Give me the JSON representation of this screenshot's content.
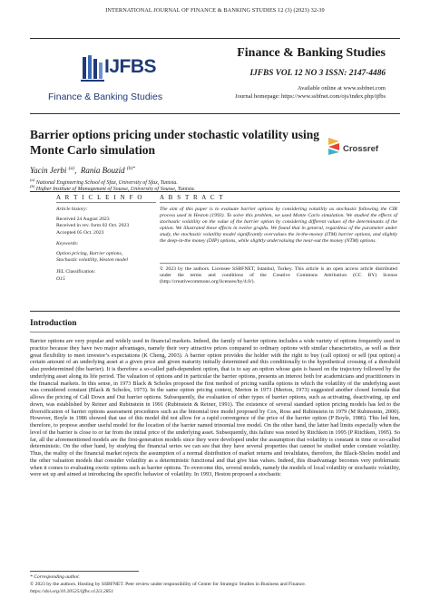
{
  "running_head": "INTERNATIONAL JOURNAL OF FINANCE & BANKING STUDIES 12 (3) (2023) 32-39",
  "logo": {
    "abbr": "IJFBS",
    "name": "Finance & Banking Studies",
    "accent": "#1f3a78"
  },
  "journal": {
    "name": "Finance & Banking Studies",
    "volume": "IJFBS VOL 12 NO 3 ISSN: 2147-4486",
    "online": "Available online at www.ssbfnet.com",
    "homepage": "Journal homepage: https://www.ssbfnet.com/ojs/index.php/ijfbs"
  },
  "title": "Barrier options pricing under stochastic volatility using Monte Carlo simulation",
  "crossref": "Crossref",
  "authors": [
    {
      "name": "Yacin Jerbi",
      "mark": "(a)"
    },
    {
      "name": "Rania Bouzid",
      "mark": "(b)*"
    }
  ],
  "author_sep": ",",
  "affiliations": [
    {
      "mark": "(a)",
      "text": "National Engineering School of Sfax, University of Sfax, Tunisia."
    },
    {
      "mark": "(b)",
      "text": "Higher Institute of Management of Sousse, University of Sousse, Tunisia."
    }
  ],
  "article_info": {
    "heading": "A R T I C L E   I N F O",
    "history_label": "Article history:",
    "history": [
      "Received 24 August 2023",
      "Received in rev. form 02 Oct. 2023",
      "Accepted 05 Oct. 2023"
    ],
    "keywords_label": "Keywords:",
    "keywords": [
      "Option pricing, Barrier options,",
      "Stochastic volatility, Heston model"
    ],
    "jel_label": "JEL Classification:",
    "jel": "O15"
  },
  "abstract": {
    "heading": "A B S T R A C T",
    "text": "The aim of this paper is to evaluate barrier options by considering volatility as stochastic following the CIR process used in Heston (1993). To solve this problem, we used Monte Carlo simulation. We studied the effects of stochastic volatility on the value of the barrier option by considering different values of the determinants of the option. We illustrated these effects in twelve graphs. We found that in general, regardless of the parameter under study, the stochastic volatility model significantly overvalues the in-the-money (ITM) barrier options, and slightly the deep-in-the money (DIP) options, while slightly undervaluing the near-out the money (NTM) options.",
    "copyright": "© 2023 by the authors. Licensee SSBFNET, Istanbul, Turkey. This article is an open access article distributed under the terms and conditions of the Creative Commons Attribution (CC BY) license (http://creativecommons.org/licenses/by/4.0/)."
  },
  "introduction": {
    "heading": "Introduction",
    "text": "Barrier options are very popular and widely used in financial markets. Indeed, the family of barrier options includes a wide variety of options frequently used in practice because they have two major advantages, namely their very attractive prices compared to ordinary options with similar characteristics, as well as their great flexibility to meet investor’s expectations (K Cheng, 2003). A barrier option provides the holder with the right to buy (call option) or sell (put option) a certain amount of an underlying asset at a given price and given maturity initially determined and this conditionally to the hypothetical crossing of a threshold also predetermined (the barrier). It is therefore a so-called path-dependent option, that is to say an option whose gain is based on the trajectory followed by the underlying asset along its life period. The valuation of options and in particular the barrier options, presents an interest both for academicians and practitioners in the financial markets. In this sense, in 1973 Black & Scholes proposed the first method of pricing vanilla options in which the volatility of the underlying asset was considered constant (Black & Scholes, 1973). In the same option pricing context, Merton in 1973 (Merton, 1973) suggested another closed formula that allows the pricing of Call Down and Out barrier options. Subsequently, the evaluation of other types of barrier options, such as activating, deactivating, up and down, was established by Reiner and Rubinstein in 1991 (Rubinstein & Reiner, 1991). The existence of several standard option pricing models has led to the diversification of barrier options assessment procedures such as the binomial tree model proposed by Cox, Ross and Rubinstein in 1979 (M Rubinstein, 2000). However, Boyle in 1986 showed that use of this model did not allow for a rapid convergence of the price of the barrier option (P Boyle, 1986). This led him, therefore, to propose another useful model for the location of the barrier named trinomial tree model. On the other hand, the latter had limits especially when the level of the barrier is close to or far from the initial price of the underlying asset. Subsequently, this failure was noted by Ritchken in 1995 (P Ritchken, 1995). So far, all the aforementioned models are the first-generation models since they were developed under the assumption that volatility is constant in time or so-called deterministic. On the other hand, by studying the financial series we can see that they have several properties that cannot be studied under constant volatility. Thus, the reality of the financial market rejects the assumption of a normal distribution of market returns and invalidates, therefore, the Black-Sholes model and the other valuation models that consider volatility as a deterministic functional and that give bias values. Indeed, this disadvantage becomes very problematic when it comes to evaluating exotic options such as barrier options. To overcome this, several models, namely the models of local volatility or stochastic volatility, were set up and aimed at introducing the specific behavior of volatility. In 1993, Heston proposed a stochastic"
  },
  "footnotes": {
    "corresponding": "* Corresponding author.",
    "hosting": "© 2023 by the authors. Hosting by SSBFNET. Peer review under responsibility of Center for Strategic Studies in Business and Finance.",
    "doi": "https://doi.org/10.20525/ijfbs.v12i3.2851"
  }
}
